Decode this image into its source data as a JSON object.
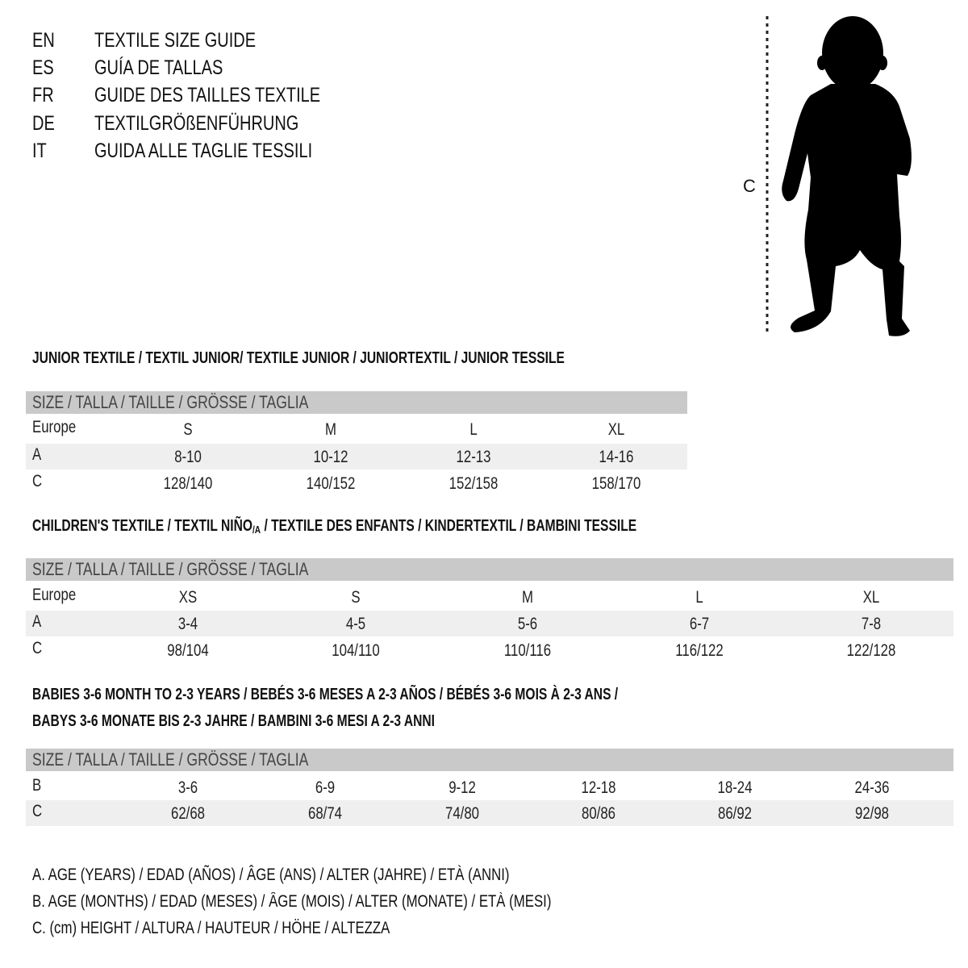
{
  "languages": [
    {
      "code": "EN",
      "title": "TEXTILE SIZE GUIDE"
    },
    {
      "code": "ES",
      "title": "GUÍA DE TALLAS"
    },
    {
      "code": "FR",
      "title": "GUIDE DES TAILLES TEXTILE"
    },
    {
      "code": "DE",
      "title": "TEXTILGRÖßENFÜHRUNG"
    },
    {
      "code": "IT",
      "title": "GUIDA ALLE TAGLIE TESSILI"
    }
  ],
  "figure": {
    "measure_label": "C",
    "icon": "baby-silhouette-icon"
  },
  "size_header": "SIZE / TALLA / TAILLE / GRÖSSE / TAGLIA",
  "junior": {
    "heading": "JUNIOR TEXTILE / TEXTIL JUNIOR/ TEXTILE JUNIOR / JUNIORTEXTIL / JUNIOR TESSILE",
    "rows": [
      {
        "label": "Europe",
        "values": [
          "S",
          "M",
          "L",
          "XL"
        ]
      },
      {
        "label": "A",
        "values": [
          "8-10",
          "10-12",
          "12-13",
          "14-16"
        ]
      },
      {
        "label": "C",
        "values": [
          "128/140",
          "140/152",
          "152/158",
          "158/170"
        ]
      }
    ]
  },
  "children": {
    "heading_pre": "CHILDREN'S TEXTILE / TEXTIL NIÑO",
    "heading_sub": "/A",
    "heading_post": " / TEXTILE DES ENFANTS / KINDERTEXTIL / BAMBINI TESSILE",
    "rows": [
      {
        "label": "Europe",
        "values": [
          "XS",
          "S",
          "M",
          "L",
          "XL"
        ]
      },
      {
        "label": "A",
        "values": [
          "3-4",
          "4-5",
          "5-6",
          "6-7",
          "7-8"
        ]
      },
      {
        "label": "C",
        "values": [
          "98/104",
          "104/110",
          "110/116",
          "116/122",
          "122/128"
        ]
      }
    ]
  },
  "babies": {
    "heading_line1": "BABIES 3-6 MONTH TO 2-3 YEARS / BEBÉS 3-6 MESES A 2-3 AÑOS / BÉBÉS 3-6 MOIS À 2-3 ANS /",
    "heading_line2": "BABYS 3-6 MONATE BIS 2-3 JAHRE / BAMBINI 3-6 MESI A 2-3 ANNI",
    "rows": [
      {
        "label": "B",
        "values": [
          "3-6",
          "6-9",
          "9-12",
          "12-18",
          "18-24",
          "24-36"
        ]
      },
      {
        "label": "C",
        "values": [
          "62/68",
          "68/74",
          "74/80",
          "80/86",
          "86/92",
          "92/98"
        ]
      }
    ]
  },
  "legend": [
    "A. AGE (YEARS) / EDAD (AÑOS) / ÂGE (ANS) / ALTER (JAHRE) / ETÀ (ANNI)",
    "B. AGE (MONTHS) / EDAD (MESES) / ÂGE (MOIS) / ALTER (MONATE) / ETÀ (MESI)",
    "C. (cm) HEIGHT / ALTURA / HAUTEUR / HÖHE / ALTEZZA"
  ],
  "colors": {
    "header_bar": "#c9c9c9",
    "row_shade": "#efefef",
    "text": "#111111"
  }
}
